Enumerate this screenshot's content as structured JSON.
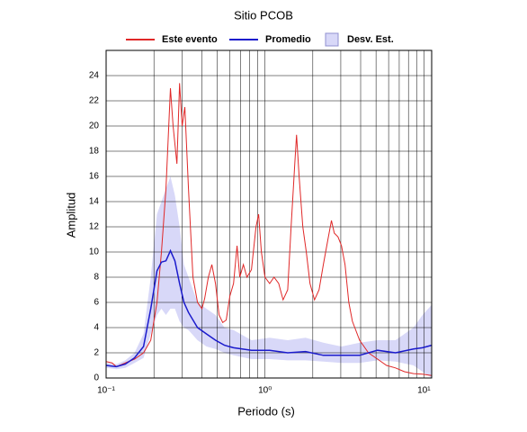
{
  "chart_data": {
    "type": "line",
    "title": "Sitio PCOB",
    "xlabel": "Periodo (s)",
    "ylabel": "Amplitud",
    "xscale": "log",
    "grid": true,
    "legend": "top",
    "xlim": [
      0.1,
      11.2
    ],
    "ylim": [
      0,
      26
    ],
    "xticks": [
      {
        "value": 0.1,
        "label": "10⁻¹"
      },
      {
        "value": 1,
        "label": "10⁰"
      },
      {
        "value": 10,
        "label": "10¹"
      }
    ],
    "xminor_ticks": [
      0.2,
      0.3,
      0.4,
      0.5,
      0.6,
      0.7,
      0.8,
      0.9,
      2,
      3,
      4,
      5,
      6,
      7,
      8,
      9
    ],
    "yticks": [
      0,
      2,
      4,
      6,
      8,
      10,
      12,
      14,
      16,
      18,
      20,
      22,
      24
    ],
    "series": [
      {
        "name": "Este evento",
        "color": "#e02828",
        "kind": "line",
        "x": [
          0.1,
          0.109,
          0.116,
          0.132,
          0.151,
          0.172,
          0.191,
          0.209,
          0.223,
          0.238,
          0.254,
          0.264,
          0.279,
          0.29,
          0.301,
          0.313,
          0.33,
          0.352,
          0.376,
          0.401,
          0.417,
          0.44,
          0.463,
          0.488,
          0.514,
          0.542,
          0.57,
          0.601,
          0.634,
          0.667,
          0.694,
          0.731,
          0.77,
          0.822,
          0.878,
          0.912,
          0.949,
          1.0,
          1.07,
          1.14,
          1.22,
          1.3,
          1.39,
          1.46,
          1.54,
          1.58,
          1.64,
          1.73,
          1.82,
          1.92,
          2.05,
          2.19,
          2.33,
          2.49,
          2.62,
          2.73,
          2.88,
          3.03,
          3.19,
          3.37,
          3.55,
          3.94,
          4.48,
          5.11,
          5.82,
          6.63,
          7.55,
          8.61,
          9.81,
          11.2
        ],
        "values": [
          1.3,
          1.2,
          0.9,
          1.2,
          1.5,
          2.0,
          3.0,
          6.0,
          10.0,
          15.0,
          23.0,
          20.0,
          17.0,
          23.4,
          20.0,
          21.5,
          15.0,
          8.0,
          6.0,
          5.5,
          6.3,
          8.0,
          9.0,
          7.5,
          5.0,
          4.4,
          4.6,
          6.5,
          7.5,
          10.5,
          8.0,
          9.0,
          8.0,
          8.6,
          12.0,
          13.0,
          10.0,
          8.0,
          7.5,
          8.0,
          7.5,
          6.2,
          7.0,
          12.0,
          17.0,
          19.3,
          16.0,
          12.0,
          10.0,
          7.5,
          6.2,
          7.0,
          9.0,
          11.0,
          12.5,
          11.5,
          11.2,
          10.5,
          9.0,
          6.0,
          4.5,
          3.0,
          2.0,
          1.5,
          1.0,
          0.8,
          0.5,
          0.35,
          0.3,
          0.2
        ]
      },
      {
        "name": "Promedio",
        "color": "#1a1acc",
        "kind": "line",
        "x": [
          0.1,
          0.116,
          0.132,
          0.151,
          0.172,
          0.191,
          0.209,
          0.223,
          0.238,
          0.254,
          0.271,
          0.29,
          0.309,
          0.33,
          0.376,
          0.428,
          0.488,
          0.556,
          0.634,
          0.822,
          1.07,
          1.39,
          1.8,
          2.33,
          3.03,
          3.94,
          5.11,
          6.63,
          8.61,
          9.81,
          11.2
        ],
        "values": [
          1.0,
          0.9,
          1.1,
          1.6,
          2.5,
          5.5,
          8.5,
          9.2,
          9.3,
          10.1,
          9.3,
          7.5,
          6.0,
          5.2,
          4.0,
          3.5,
          3.0,
          2.6,
          2.4,
          2.2,
          2.2,
          2.0,
          2.1,
          1.8,
          1.8,
          1.8,
          2.2,
          2.0,
          2.3,
          2.4,
          2.6
        ]
      },
      {
        "name": "Desv. Est.",
        "color": "#d8d8f8",
        "kind": "band",
        "x": [
          0.1,
          0.116,
          0.132,
          0.151,
          0.172,
          0.191,
          0.209,
          0.223,
          0.238,
          0.254,
          0.271,
          0.29,
          0.309,
          0.33,
          0.376,
          0.428,
          0.488,
          0.556,
          0.634,
          0.822,
          1.07,
          1.39,
          1.8,
          2.33,
          3.03,
          3.94,
          5.11,
          6.63,
          8.61,
          9.81,
          11.2
        ],
        "upper": [
          1.2,
          1.1,
          1.4,
          2.0,
          3.5,
          8.0,
          13.0,
          14.0,
          15.0,
          16.0,
          14.5,
          12.0,
          9.0,
          8.0,
          6.0,
          5.5,
          5.0,
          4.0,
          3.8,
          3.0,
          3.2,
          3.0,
          3.2,
          2.8,
          2.5,
          2.8,
          3.0,
          3.0,
          4.0,
          5.0,
          5.8
        ],
        "lower": [
          0.8,
          0.7,
          0.8,
          1.2,
          1.6,
          3.5,
          5.0,
          5.5,
          5.0,
          5.5,
          5.5,
          4.5,
          4.0,
          3.8,
          3.0,
          2.5,
          2.3,
          2.0,
          1.8,
          1.5,
          1.5,
          1.4,
          1.4,
          1.3,
          1.2,
          1.2,
          1.4,
          1.3,
          1.0,
          0.5,
          0.0
        ]
      }
    ]
  }
}
